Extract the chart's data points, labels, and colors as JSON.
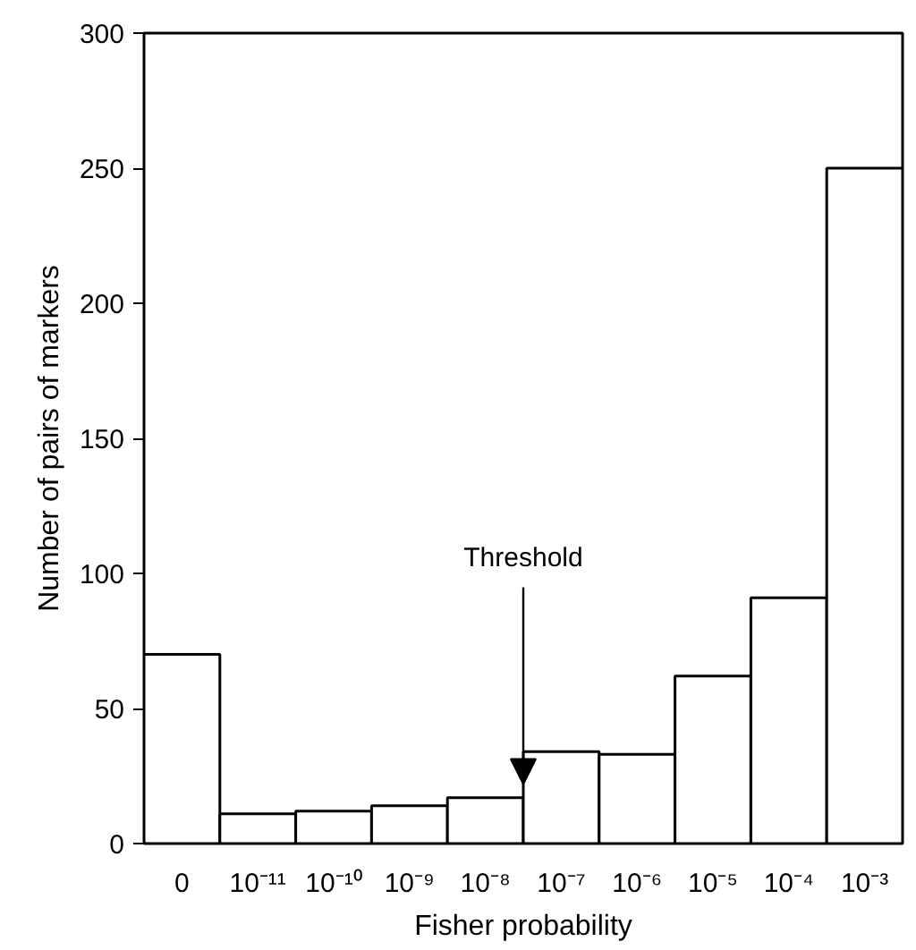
{
  "chart_data": {
    "type": "bar",
    "xlabel": "Fisher probability",
    "ylabel": "Number of pairs of markers",
    "categories": [
      "0",
      "10⁻¹¹",
      "10⁻¹⁰",
      "10⁻⁹",
      "10⁻⁸",
      "10⁻⁷",
      "10⁻⁶",
      "10⁻⁵",
      "10⁻⁴",
      "10⁻³"
    ],
    "values": [
      70,
      11,
      12,
      14,
      17,
      34,
      33,
      62,
      91,
      250
    ],
    "color": "#ffffff",
    "ylim": [
      0,
      300
    ],
    "yticks": [
      0,
      50,
      100,
      150,
      200,
      250,
      300
    ],
    "grid": false,
    "annotations": [
      {
        "text": "Threshold",
        "y": 22
      }
    ]
  }
}
